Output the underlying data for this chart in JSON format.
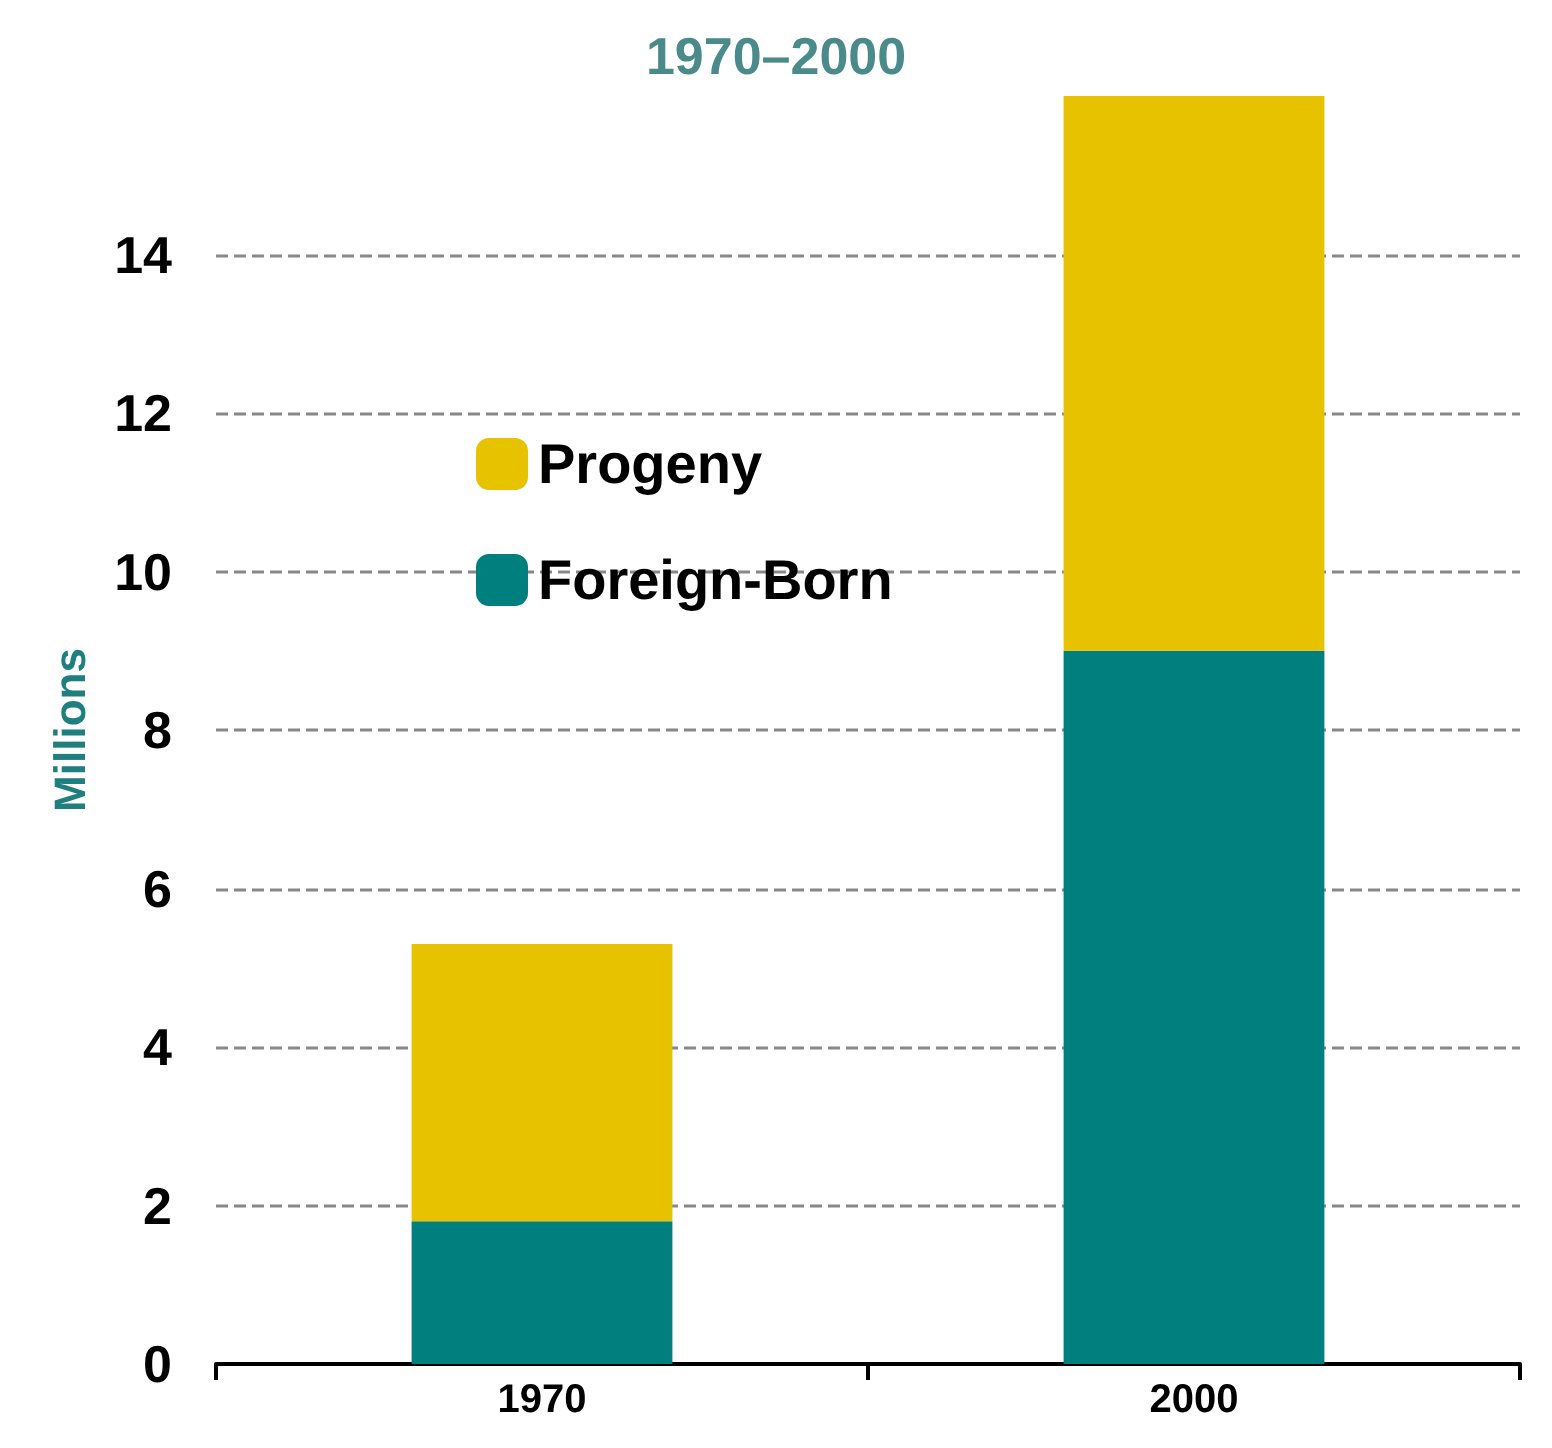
{
  "chart_data": {
    "type": "bar",
    "title": "1970–2000",
    "ylabel": "Millions",
    "categories": [
      "1970",
      "2000"
    ],
    "stacked": true,
    "series": [
      {
        "name": "Foreign-Born",
        "color": "#007f7f",
        "values": [
          1.8,
          9.0
        ]
      },
      {
        "name": "Progeny",
        "color": "#e6c200",
        "values": [
          3.5,
          7.0
        ]
      }
    ],
    "ylim": [
      0,
      16
    ],
    "yticks": [
      0,
      2,
      4,
      6,
      8,
      10,
      12,
      14
    ],
    "grid": "y",
    "legend": "left"
  }
}
